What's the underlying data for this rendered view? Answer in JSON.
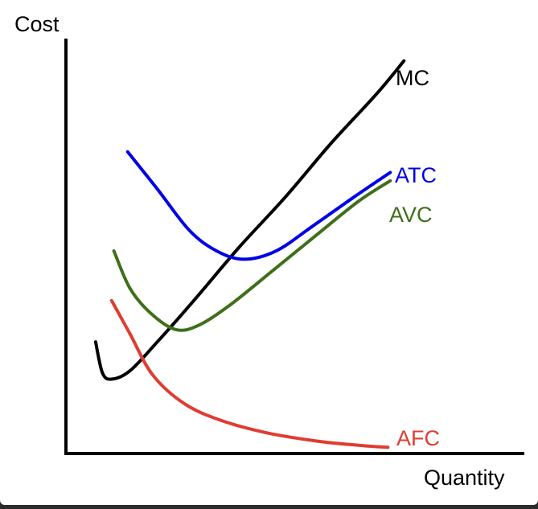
{
  "chart_data": {
    "type": "line",
    "title": "",
    "ylabel": "Cost",
    "xlabel": "Quantity",
    "grid": false,
    "legend": "none",
    "axes": {
      "x_ticks": false,
      "y_ticks": false
    },
    "xlim": [
      0,
      100
    ],
    "ylim": [
      0,
      100
    ],
    "series": [
      {
        "name": "MC",
        "color": "#000000",
        "points": [
          [
            6.5,
            27
          ],
          [
            8,
            19.5
          ],
          [
            10,
            18
          ],
          [
            14,
            20
          ],
          [
            20,
            27
          ],
          [
            28,
            37
          ],
          [
            38,
            50
          ],
          [
            48,
            62
          ],
          [
            58,
            75
          ],
          [
            68,
            87
          ],
          [
            74,
            95
          ]
        ]
      },
      {
        "name": "ATC",
        "color": "#0000e6",
        "points": [
          [
            13.5,
            73
          ],
          [
            20,
            64
          ],
          [
            27,
            54
          ],
          [
            33,
            49
          ],
          [
            39,
            47
          ],
          [
            46,
            49
          ],
          [
            54,
            55
          ],
          [
            63,
            62
          ],
          [
            71,
            68
          ]
        ]
      },
      {
        "name": "AVC",
        "color": "#3f6f1a",
        "points": [
          [
            10.5,
            49
          ],
          [
            14,
            40
          ],
          [
            18.5,
            34
          ],
          [
            24,
            30
          ],
          [
            29,
            31
          ],
          [
            36,
            36
          ],
          [
            45,
            44
          ],
          [
            55,
            53
          ],
          [
            64,
            61
          ],
          [
            71,
            66
          ]
        ]
      },
      {
        "name": "AFC",
        "color": "#e03c31",
        "points": [
          [
            10,
            37
          ],
          [
            14,
            29
          ],
          [
            19,
            19
          ],
          [
            26,
            12
          ],
          [
            34,
            8
          ],
          [
            44,
            5
          ],
          [
            55,
            3
          ],
          [
            64,
            2
          ],
          [
            70.5,
            1.5
          ]
        ]
      }
    ]
  }
}
